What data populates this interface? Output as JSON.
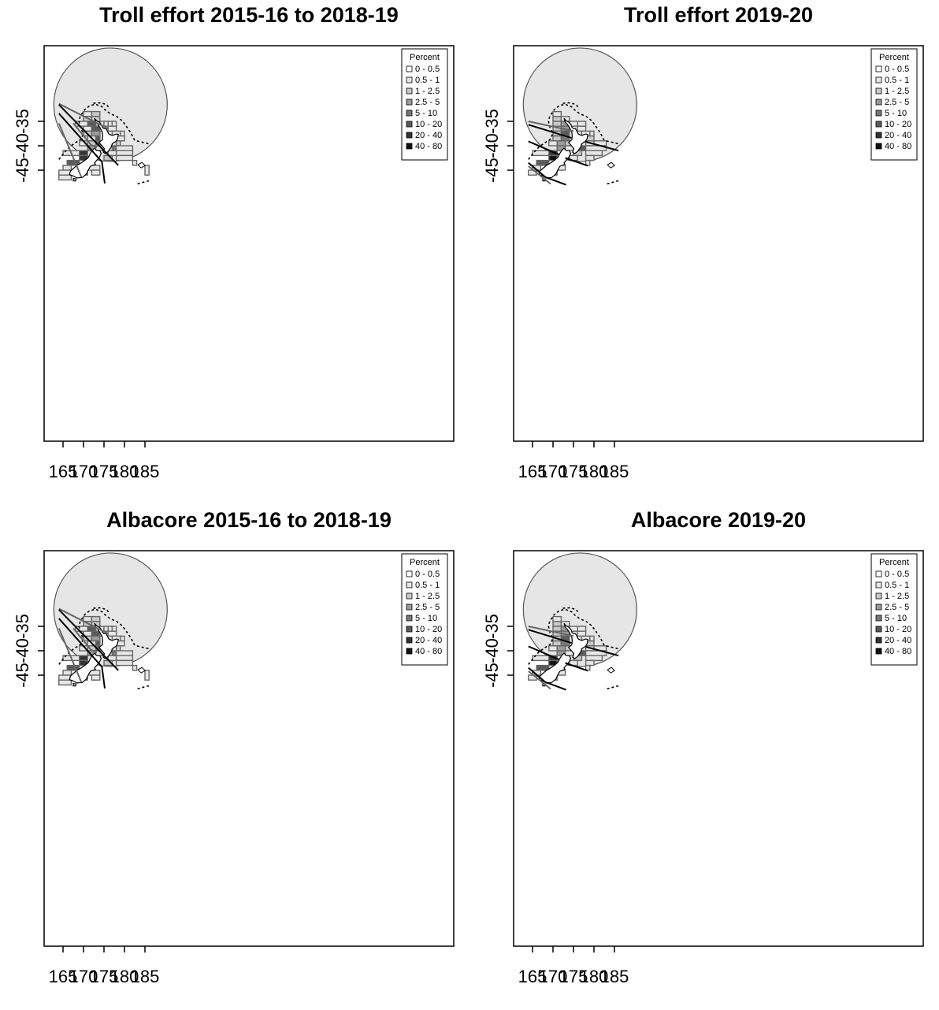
{
  "panels": [
    {
      "title": "Troll effort 2015-16 to 2018-19",
      "period": "past"
    },
    {
      "title": "Troll effort 2019-20",
      "period": "current"
    },
    {
      "title": "Albacore 2015-16 to 2018-19",
      "period": "past"
    },
    {
      "title": "Albacore 2019-20",
      "period": "current"
    }
  ],
  "axes": {
    "x_ticks": [
      "165",
      "170",
      "175",
      "180",
      "185"
    ],
    "y_ticks": [
      "-35",
      "-40",
      "-45"
    ]
  },
  "legend": {
    "title": "Percent",
    "classes": [
      "0 - 0.5",
      "0.5 - 1",
      "1 - 2.5",
      "2.5 - 5",
      "5 - 10",
      "10 - 20",
      "20 - 40",
      "40 - 80"
    ],
    "colors": [
      "#ffffff",
      "#e6e6e6",
      "#c9c9c9",
      "#9a9a9a",
      "#777777",
      "#5a5a5a",
      "#333333",
      "#111111"
    ]
  }
}
